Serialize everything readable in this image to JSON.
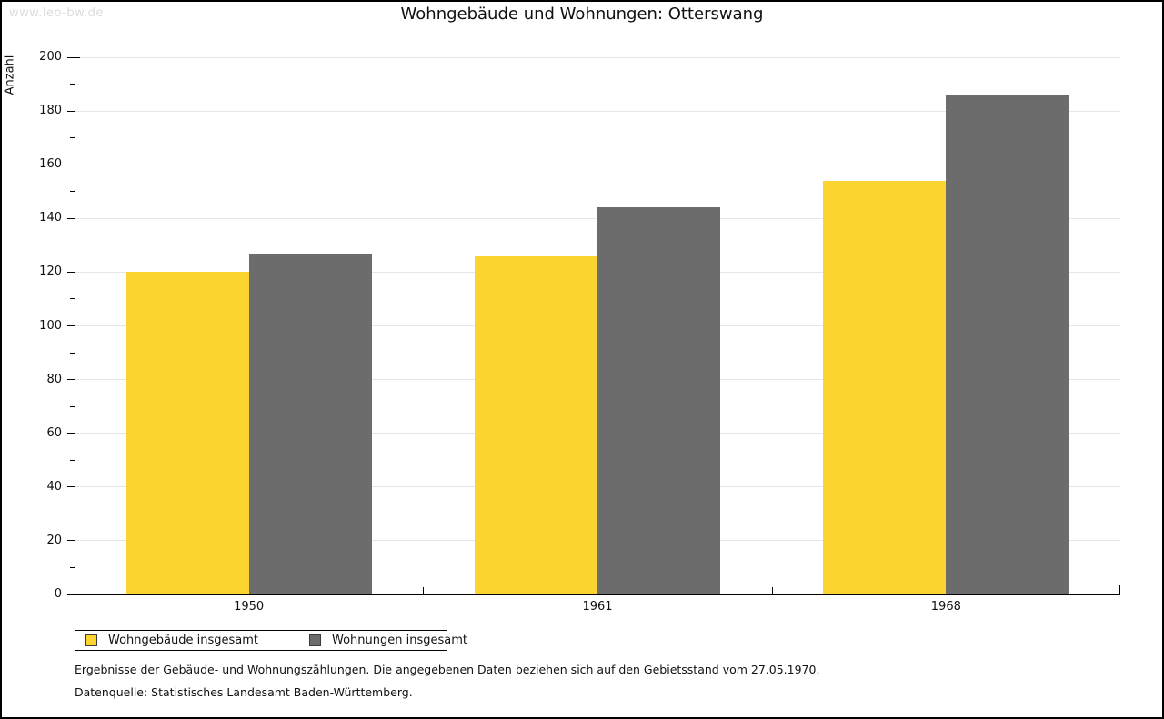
{
  "watermark": "www.leo-bw.de",
  "chart_data": {
    "type": "bar",
    "title": "Wohngebäude und Wohnungen: Otterswang",
    "xlabel": "",
    "ylabel": "Anzahl",
    "categories": [
      "1950",
      "1961",
      "1968"
    ],
    "series": [
      {
        "name": "Wohngebäude insgesamt",
        "color": "#FCD42F",
        "values": [
          120,
          126,
          154
        ]
      },
      {
        "name": "Wohnungen insgesamt",
        "color": "#6C6C6C",
        "values": [
          127,
          144,
          186
        ]
      }
    ],
    "ylim": [
      0,
      200
    ],
    "ytick_step": 20,
    "yminor_step": 10,
    "grid": true,
    "legend_position": "bottom-left"
  },
  "footnotes": {
    "line1": "Ergebnisse der Gebäude- und Wohnungszählungen. Die angegebenen Daten beziehen sich auf den Gebietsstand vom 27.05.1970.",
    "line2": "Datenquelle: Statistisches Landesamt Baden-Württemberg."
  }
}
